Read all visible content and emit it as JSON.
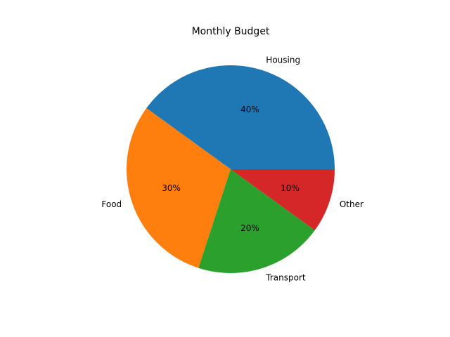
{
  "chart_data": {
    "type": "pie",
    "title": "Monthly Budget",
    "slices": [
      {
        "label": "Housing",
        "value": 40,
        "pct_label": "40%",
        "color": "#1f77b4"
      },
      {
        "label": "Food",
        "value": 30,
        "pct_label": "30%",
        "color": "#ff7f0e"
      },
      {
        "label": "Transport",
        "value": 20,
        "pct_label": "20%",
        "color": "#2ca02c"
      },
      {
        "label": "Other",
        "value": 10,
        "pct_label": "10%",
        "color": "#d62728"
      }
    ]
  }
}
